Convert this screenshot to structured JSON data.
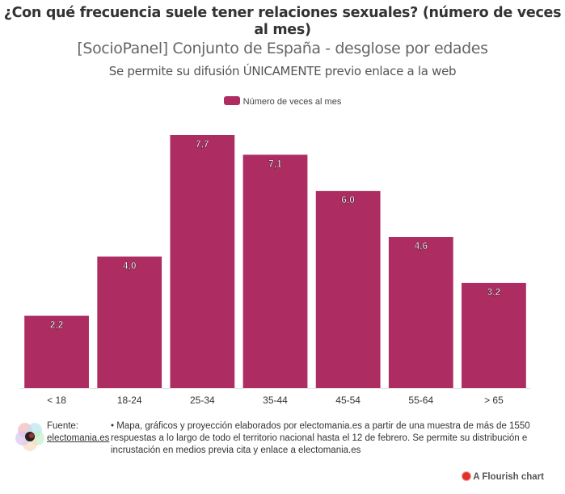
{
  "header": {
    "title": "¿Con qué frecuencia suele tener relaciones sexuales? (número de veces al mes)",
    "subtitle": "[SocioPanel] Conjunto de España - desglose por edades",
    "note": "Se permite su difusión ÚNICAMENTE previo enlace a la web"
  },
  "colors": {
    "bar": "#ad2d63",
    "axis": "#e5e5e5",
    "label_text": "#333333"
  },
  "chart_data": {
    "type": "bar",
    "title": "¿Con qué frecuencia suele tener relaciones sexuales? (número de veces al mes)",
    "xlabel": "",
    "ylabel": "",
    "categories": [
      "< 18",
      "18-24",
      "25-34",
      "35-44",
      "45-54",
      "55-64",
      "> 65"
    ],
    "series": [
      {
        "name": "Número de veces al mes",
        "values": [
          2.2,
          4.0,
          7.7,
          7.1,
          6.0,
          4.6,
          3.2
        ]
      }
    ],
    "data_labels": [
      "2,2",
      "4,0",
      "7,7",
      "7,1",
      "6,0",
      "4,6",
      "3,2"
    ],
    "ylim": [
      0,
      7.7
    ],
    "grid": false,
    "legend": {
      "position": "top-center",
      "entries": [
        "Número de veces al mes"
      ]
    }
  },
  "footer": {
    "source_label": "Fuente:",
    "source_link": "electomania.es",
    "source_text": "• Mapa, gráficos y proyección elaborados por electomania.es a partir de una muestra de más de 1550 respuestas a lo largo de todo el territorio nacional hasta el 12 de febrero. Se permite su distribución e incrustación en medios previa cita y enlace a electomania.es",
    "logo_icon": "electomania-logo-icon"
  },
  "branding": {
    "flourish_label": "A Flourish chart",
    "flourish_icon": "flourish-icon"
  }
}
